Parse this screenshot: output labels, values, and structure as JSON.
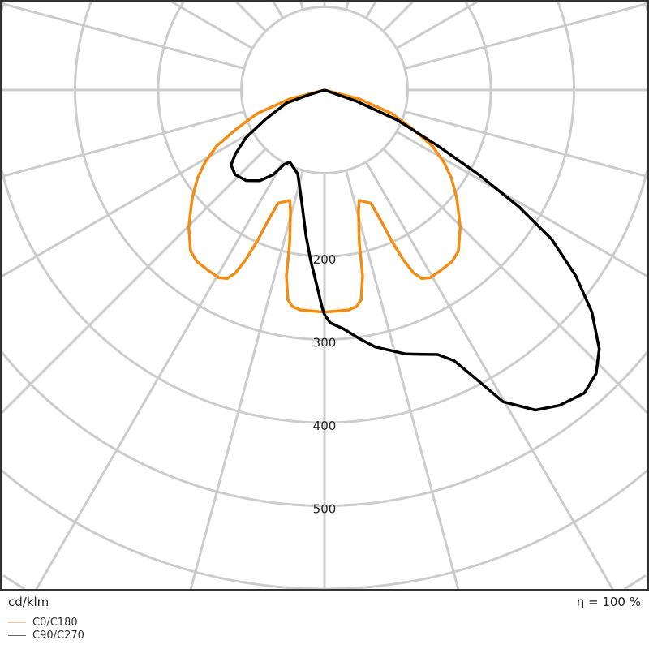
{
  "chart_data": {
    "type": "polar-line",
    "unit_label": "cd/klm",
    "efficiency_label": "η = 100 %",
    "radial_ticks": [
      200,
      300,
      400,
      500
    ],
    "radial_grid": [
      100,
      200,
      300,
      400,
      500,
      600,
      700
    ],
    "angle_grid_step_deg": 15,
    "grid": true,
    "legend_position": "bottom-left",
    "series": [
      {
        "name": "C0/C180",
        "color": "#f28c12",
        "points": [
          [
            -78,
            0
          ],
          [
            -75.7,
            43
          ],
          [
            -70.7,
            86
          ],
          [
            -66,
            117
          ],
          [
            -62.6,
            146
          ],
          [
            -58.8,
            168
          ],
          [
            -55.2,
            186
          ],
          [
            -50.6,
            206
          ],
          [
            -44.7,
            232
          ],
          [
            -39.7,
            252
          ],
          [
            -36.7,
            257
          ],
          [
            -32.8,
            258
          ],
          [
            -29.4,
            259
          ],
          [
            -27.3,
            255
          ],
          [
            -26,
            245
          ],
          [
            -24.9,
            225
          ],
          [
            -24,
            199
          ],
          [
            -23.4,
            172
          ],
          [
            -22.3,
            147
          ],
          [
            -17.5,
            139
          ],
          [
            -15.7,
            151
          ],
          [
            -12.8,
            189
          ],
          [
            -11.6,
            228
          ],
          [
            -9.9,
            256
          ],
          [
            -8.5,
            263
          ],
          [
            -6.3,
            266
          ],
          [
            0,
            267
          ],
          [
            6.3,
            266
          ],
          [
            8.5,
            263
          ],
          [
            9.9,
            256
          ],
          [
            11.6,
            228
          ],
          [
            12.8,
            189
          ],
          [
            15.7,
            151
          ],
          [
            17.5,
            139
          ],
          [
            22.3,
            147
          ],
          [
            23.4,
            172
          ],
          [
            24,
            199
          ],
          [
            24.9,
            225
          ],
          [
            26,
            245
          ],
          [
            27.3,
            255
          ],
          [
            29.4,
            259
          ],
          [
            32.8,
            258
          ],
          [
            36.7,
            257
          ],
          [
            39.7,
            252
          ],
          [
            44.7,
            232
          ],
          [
            50.6,
            206
          ],
          [
            55.2,
            186
          ],
          [
            58.8,
            168
          ],
          [
            62.6,
            146
          ],
          [
            66,
            117
          ],
          [
            70.7,
            86
          ],
          [
            75.7,
            43
          ],
          [
            78,
            0
          ]
        ]
      },
      {
        "name": "C90/C270",
        "color": "#000000",
        "points": [
          [
            -73,
            0
          ],
          [
            -73,
            20
          ],
          [
            -71.2,
            48
          ],
          [
            -63.7,
            79
          ],
          [
            -58.7,
            111
          ],
          [
            -54.3,
            132
          ],
          [
            -51.3,
            144
          ],
          [
            -46.6,
            148
          ],
          [
            -40.9,
            144
          ],
          [
            -35.5,
            134
          ],
          [
            -31.2,
            119
          ],
          [
            -28.5,
            102
          ],
          [
            -25.8,
            96
          ],
          [
            -17.6,
            106
          ],
          [
            -11.4,
            138
          ],
          [
            -7.3,
            176
          ],
          [
            -4.7,
            205
          ],
          [
            -2.4,
            233
          ],
          [
            -0.6,
            262
          ],
          [
            0,
            270
          ],
          [
            1.4,
            280
          ],
          [
            4.5,
            288
          ],
          [
            8,
            302
          ],
          [
            11.2,
            315
          ],
          [
            17.1,
            332
          ],
          [
            23.2,
            346
          ],
          [
            25.6,
            361
          ],
          [
            27.9,
            396
          ],
          [
            29.8,
            432
          ],
          [
            33.4,
            461
          ],
          [
            36.7,
            473
          ],
          [
            40.6,
            480
          ],
          [
            43.8,
            472
          ],
          [
            46.7,
            454
          ],
          [
            50.3,
            418
          ],
          [
            53.5,
            376
          ],
          [
            56.7,
            327
          ],
          [
            59,
            273
          ],
          [
            61.3,
            211
          ],
          [
            63.8,
            152
          ],
          [
            67.6,
            95
          ],
          [
            70.7,
            41
          ],
          [
            72,
            0
          ]
        ]
      }
    ]
  }
}
